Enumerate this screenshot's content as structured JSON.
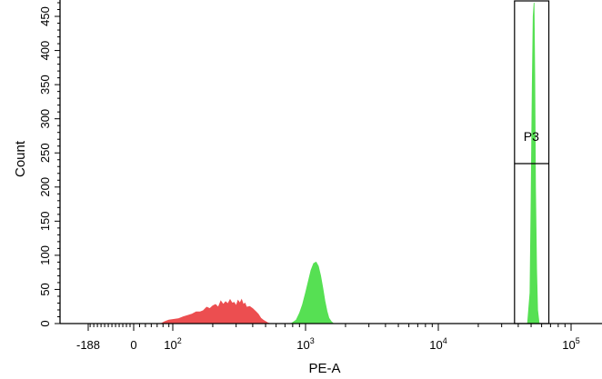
{
  "chart_data": {
    "type": "area",
    "xlabel": "PE-A",
    "ylabel": "Count",
    "x_scale": "biexponential",
    "x_range": [
      -188,
      400000
    ],
    "ylim": [
      0,
      470
    ],
    "x_tick_labels": [
      {
        "text": "-188",
        "x": -188
      },
      {
        "text": "0",
        "x": 0
      },
      {
        "text": "10",
        "sup": "2",
        "x": 100
      },
      {
        "text": "10",
        "sup": "3",
        "x": 1000
      },
      {
        "text": "10",
        "sup": "4",
        "x": 10000
      },
      {
        "text": "10",
        "sup": "5",
        "x": 100000
      }
    ],
    "y_ticks": [
      0,
      50,
      100,
      150,
      200,
      250,
      300,
      350,
      400,
      450
    ],
    "y_tick_labels": [
      "0",
      "50",
      "100",
      "150",
      "200",
      "250",
      "300",
      "350",
      "400",
      "450"
    ],
    "series": [
      {
        "color": "#ec4e50",
        "points": [
          [
            70,
            0
          ],
          [
            80,
            3
          ],
          [
            90,
            5
          ],
          [
            100,
            6
          ],
          [
            110,
            7
          ],
          [
            120,
            10
          ],
          [
            130,
            12
          ],
          [
            140,
            14
          ],
          [
            150,
            17
          ],
          [
            160,
            17
          ],
          [
            170,
            19
          ],
          [
            180,
            24
          ],
          [
            190,
            22
          ],
          [
            200,
            26
          ],
          [
            210,
            28
          ],
          [
            220,
            24
          ],
          [
            230,
            33
          ],
          [
            240,
            28
          ],
          [
            250,
            32
          ],
          [
            260,
            29
          ],
          [
            270,
            35
          ],
          [
            280,
            30
          ],
          [
            290,
            31
          ],
          [
            300,
            26
          ],
          [
            310,
            34
          ],
          [
            320,
            30
          ],
          [
            330,
            35
          ],
          [
            340,
            28
          ],
          [
            350,
            30
          ],
          [
            360,
            24
          ],
          [
            380,
            25
          ],
          [
            400,
            22
          ],
          [
            420,
            18
          ],
          [
            440,
            14
          ],
          [
            460,
            8
          ],
          [
            480,
            5
          ],
          [
            500,
            3
          ],
          [
            520,
            1
          ],
          [
            540,
            0
          ]
        ]
      },
      {
        "color": "#56e053",
        "points": [
          [
            780,
            0
          ],
          [
            850,
            5
          ],
          [
            900,
            15
          ],
          [
            950,
            28
          ],
          [
            1000,
            45
          ],
          [
            1050,
            62
          ],
          [
            1100,
            78
          ],
          [
            1150,
            88
          ],
          [
            1200,
            90
          ],
          [
            1250,
            84
          ],
          [
            1300,
            70
          ],
          [
            1350,
            52
          ],
          [
            1400,
            33
          ],
          [
            1450,
            18
          ],
          [
            1500,
            8
          ],
          [
            1560,
            3
          ],
          [
            1620,
            0
          ]
        ]
      },
      {
        "color": "#56e053",
        "points": [
          [
            47000,
            0
          ],
          [
            49000,
            45
          ],
          [
            50000,
            180
          ],
          [
            51000,
            350
          ],
          [
            51800,
            450
          ],
          [
            52600,
            480
          ],
          [
            53300,
            360
          ],
          [
            54000,
            200
          ],
          [
            55000,
            80
          ],
          [
            56000,
            20
          ],
          [
            57500,
            0
          ]
        ]
      }
    ],
    "gate": {
      "label": "P3",
      "x_min": 37500,
      "x_max": 68000
    }
  }
}
